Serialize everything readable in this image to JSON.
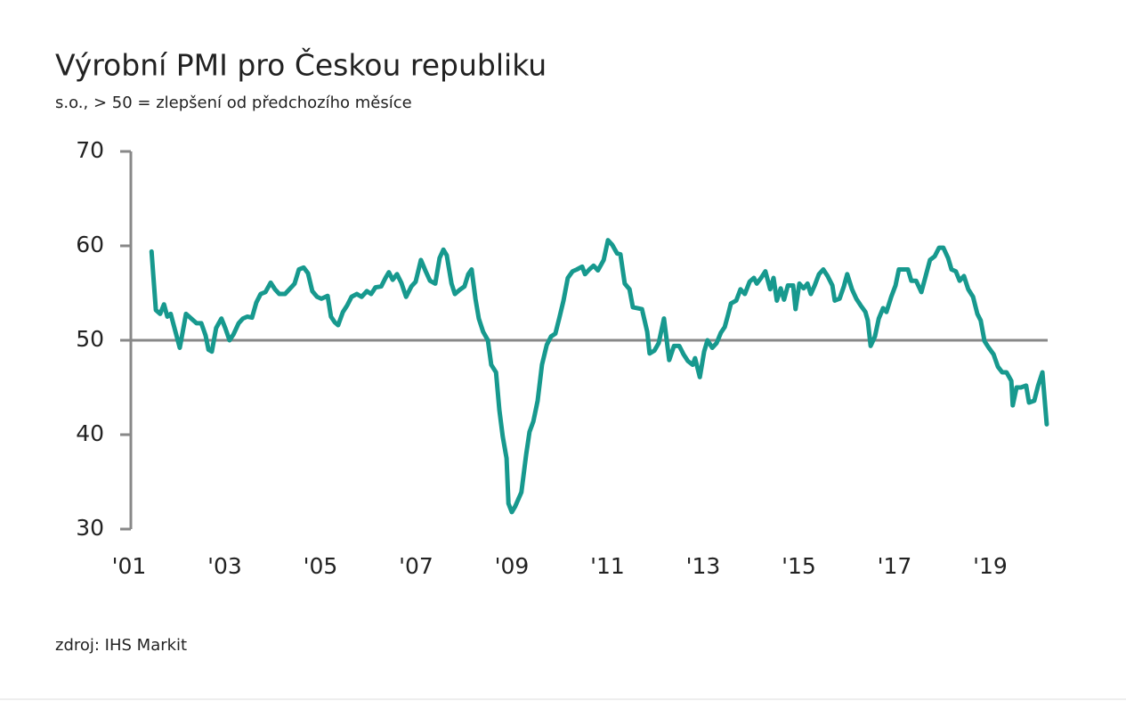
{
  "chart_data": {
    "type": "line",
    "title": "Výrobní PMI pro Českou republiku",
    "subtitle": "s.o., > 50 = zlepšení od předchozího měsíce",
    "source": "zdroj: IHS Markit",
    "xlim": [
      2001,
      2020.2
    ],
    "xticks": [
      {
        "value": 2001,
        "label": "'01"
      },
      {
        "value": 2003,
        "label": "'03"
      },
      {
        "value": 2005,
        "label": "'05"
      },
      {
        "value": 2007,
        "label": "'07"
      },
      {
        "value": 2009,
        "label": "'09"
      },
      {
        "value": 2011,
        "label": "'11"
      },
      {
        "value": 2013,
        "label": "'13"
      },
      {
        "value": 2015,
        "label": "'15"
      },
      {
        "value": 2017,
        "label": "'17"
      },
      {
        "value": 2019,
        "label": "'19"
      }
    ],
    "ylim": [
      30,
      70
    ],
    "yticks": [
      30,
      40,
      50,
      60,
      70
    ],
    "reference_line": 50,
    "grid": false,
    "x": [
      2001.47,
      2001.56,
      2001.65,
      2001.73,
      2001.8,
      2001.87,
      2001.97,
      2002.06,
      2002.19,
      2002.3,
      2002.41,
      2002.51,
      2002.6,
      2002.66,
      2002.73,
      2002.82,
      2002.93,
      2003.01,
      2003.1,
      2003.18,
      2003.29,
      2003.38,
      2003.47,
      2003.57,
      2003.66,
      2003.75,
      2003.85,
      2003.96,
      2004.05,
      2004.14,
      2004.26,
      2004.35,
      2004.46,
      2004.55,
      2004.65,
      2004.74,
      2004.83,
      2004.93,
      2005.02,
      2005.15,
      2005.22,
      2005.3,
      2005.37,
      2005.47,
      2005.56,
      2005.65,
      2005.76,
      2005.86,
      2005.97,
      2006.06,
      2006.15,
      2006.27,
      2006.36,
      2006.43,
      2006.51,
      2006.6,
      2006.69,
      2006.79,
      2006.9,
      2006.99,
      2007.1,
      2007.2,
      2007.29,
      2007.4,
      2007.49,
      2007.57,
      2007.64,
      2007.74,
      2007.81,
      2007.9,
      2008.01,
      2008.09,
      2008.16,
      2008.24,
      2008.31,
      2008.4,
      2008.5,
      2008.57,
      2008.67,
      2008.74,
      2008.81,
      2008.89,
      2008.93,
      2009.0,
      2009.07,
      2009.2,
      2009.3,
      2009.37,
      2009.45,
      2009.54,
      2009.63,
      2009.73,
      2009.82,
      2009.91,
      2009.99,
      2010.08,
      2010.17,
      2010.27,
      2010.36,
      2010.47,
      2010.53,
      2010.62,
      2010.71,
      2010.8,
      2010.92,
      2011.01,
      2011.1,
      2011.2,
      2011.27,
      2011.36,
      2011.46,
      2011.53,
      2011.62,
      2011.72,
      2011.83,
      2011.88,
      2011.98,
      2012.07,
      2012.18,
      2012.29,
      2012.39,
      2012.5,
      2012.59,
      2012.68,
      2012.78,
      2012.83,
      2012.93,
      2013.02,
      2013.09,
      2013.19,
      2013.28,
      2013.37,
      2013.45,
      2013.52,
      2013.58,
      2013.69,
      2013.78,
      2013.87,
      2013.97,
      2014.06,
      2014.12,
      2014.21,
      2014.3,
      2014.4,
      2014.47,
      2014.54,
      2014.62,
      2014.69,
      2014.77,
      2014.88,
      2014.93,
      2015.01,
      2015.1,
      2015.18,
      2015.25,
      2015.33,
      2015.42,
      2015.51,
      2015.6,
      2015.7,
      2015.75,
      2015.85,
      2015.94,
      2016.01,
      2016.11,
      2016.2,
      2016.29,
      2016.39,
      2016.44,
      2016.5,
      2016.59,
      2016.67,
      2016.76,
      2016.83,
      2016.93,
      2017.02,
      2017.09,
      2017.19,
      2017.28,
      2017.35,
      2017.45,
      2017.56,
      2017.65,
      2017.74,
      2017.84,
      2017.93,
      2018.02,
      2018.12,
      2018.19,
      2018.28,
      2018.36,
      2018.45,
      2018.54,
      2018.64,
      2018.73,
      2018.8,
      2018.88,
      2018.97,
      2019.07,
      2019.16,
      2019.25,
      2019.34,
      2019.44,
      2019.47,
      2019.55,
      2019.64,
      2019.75,
      2019.81,
      2019.92,
      2020.0,
      2020.09,
      2020.18
    ],
    "series": [
      {
        "name": "PMI",
        "color": "#17998e",
        "values": [
          59.4,
          53.2,
          52.8,
          53.8,
          52.5,
          52.8,
          50.9,
          49.2,
          52.8,
          52.3,
          51.8,
          51.8,
          50.5,
          49.0,
          48.8,
          51.3,
          52.3,
          51.3,
          50.0,
          50.6,
          51.8,
          52.3,
          52.5,
          52.4,
          54.0,
          54.9,
          55.1,
          56.1,
          55.4,
          54.9,
          54.9,
          55.4,
          56.0,
          57.5,
          57.7,
          57.1,
          55.2,
          54.6,
          54.4,
          54.7,
          52.5,
          51.9,
          51.6,
          53.0,
          53.7,
          54.6,
          54.9,
          54.6,
          55.2,
          54.9,
          55.6,
          55.7,
          56.6,
          57.2,
          56.4,
          57.0,
          56.1,
          54.6,
          55.7,
          56.2,
          58.5,
          57.3,
          56.3,
          56.0,
          58.7,
          59.6,
          59.0,
          56.0,
          54.9,
          55.3,
          55.7,
          57.0,
          57.5,
          54.4,
          52.3,
          50.9,
          50.0,
          47.4,
          46.6,
          42.6,
          39.8,
          37.5,
          32.7,
          31.8,
          32.4,
          33.9,
          37.9,
          40.3,
          41.4,
          43.6,
          47.4,
          49.5,
          50.4,
          50.7,
          52.3,
          54.2,
          56.6,
          57.3,
          57.5,
          57.8,
          57.0,
          57.5,
          57.9,
          57.4,
          58.5,
          60.6,
          60.1,
          59.2,
          59.1,
          56.0,
          55.4,
          53.5,
          53.4,
          53.3,
          50.9,
          48.6,
          48.9,
          49.7,
          52.3,
          47.9,
          49.4,
          49.4,
          48.5,
          47.8,
          47.4,
          48.1,
          46.1,
          48.8,
          50.0,
          49.2,
          49.7,
          50.8,
          51.4,
          52.7,
          53.9,
          54.2,
          55.4,
          54.9,
          56.2,
          56.6,
          56.0,
          56.6,
          57.3,
          55.4,
          56.6,
          54.2,
          55.5,
          54.3,
          55.8,
          55.8,
          53.3,
          56.0,
          55.5,
          56.0,
          54.9,
          55.8,
          57.0,
          57.5,
          56.8,
          55.8,
          54.2,
          54.4,
          55.7,
          57.0,
          55.4,
          54.4,
          53.7,
          53.0,
          52.1,
          49.4,
          50.4,
          52.3,
          53.4,
          53.0,
          54.6,
          55.8,
          57.5,
          57.5,
          57.5,
          56.3,
          56.3,
          55.1,
          56.8,
          58.5,
          58.9,
          59.8,
          59.8,
          58.7,
          57.5,
          57.3,
          56.3,
          56.8,
          55.4,
          54.6,
          52.8,
          52.1,
          49.9,
          49.2,
          48.5,
          47.2,
          46.6,
          46.6,
          45.7,
          43.1,
          45.0,
          45.0,
          45.2,
          43.4,
          43.6,
          45.2,
          46.6,
          41.1
        ]
      }
    ]
  }
}
